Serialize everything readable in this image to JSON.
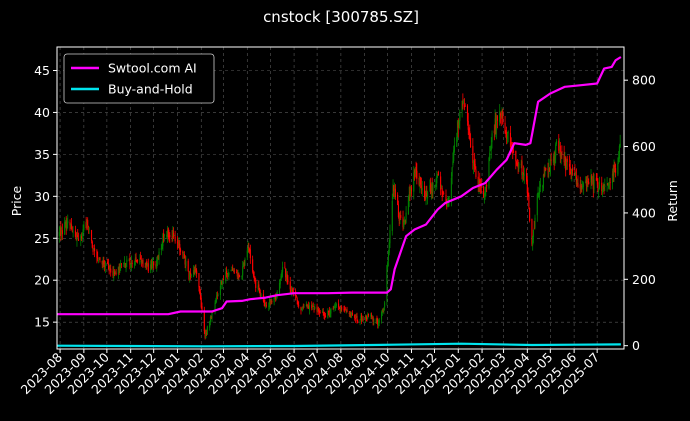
{
  "chart_data": {
    "type": "candlestick-line-overlay",
    "title": "cnstock [300785.SZ]",
    "ylabel": "Price",
    "ylabel_right": "Return",
    "ylim": [
      11.8,
      47.8
    ],
    "ylim_right": [
      -10,
      900
    ],
    "yticks": [
      15,
      20,
      25,
      30,
      35,
      40,
      45
    ],
    "yticks_right": [
      0,
      200,
      400,
      600,
      800
    ],
    "xlim": [
      "2023-07-28",
      "2025-08-05"
    ],
    "xticks": [
      "2023-08",
      "2023-09",
      "2023-10",
      "2023-11",
      "2023-12",
      "2024-01",
      "2024-02",
      "2024-03",
      "2024-04",
      "2024-05",
      "2024-06",
      "2024-07",
      "2024-08",
      "2024-09",
      "2024-10",
      "2024-11",
      "2024-12",
      "2025-01",
      "2025-02",
      "2025-03",
      "2025-04",
      "2025-05",
      "2025-06",
      "2025-07"
    ],
    "grid": true,
    "legend_placement": "top-left",
    "colors": {
      "background": "#000000",
      "up": "#008000",
      "down": "#ff0000",
      "strategy": "#ff00ff",
      "buy_hold": "#00e5ee",
      "text": "#ffffff"
    },
    "price_anchors": [
      [
        "2023-07-31",
        25.5
      ],
      [
        "2023-08-10",
        26.8
      ],
      [
        "2023-08-25",
        24.5
      ],
      [
        "2023-09-05",
        27.0
      ],
      [
        "2023-09-15",
        23.0
      ],
      [
        "2023-09-28",
        22.0
      ],
      [
        "2023-10-10",
        20.8
      ],
      [
        "2023-10-25",
        22.0
      ],
      [
        "2023-11-10",
        22.5
      ],
      [
        "2023-11-25",
        21.5
      ],
      [
        "2023-12-05",
        22.0
      ],
      [
        "2023-12-15",
        26.0
      ],
      [
        "2023-12-25",
        25.5
      ],
      [
        "2024-01-08",
        23.0
      ],
      [
        "2024-01-18",
        20.0
      ],
      [
        "2024-01-25",
        21.5
      ],
      [
        "2024-02-01",
        17.0
      ],
      [
        "2024-02-06",
        13.3
      ],
      [
        "2024-02-20",
        17.5
      ],
      [
        "2024-03-01",
        20.5
      ],
      [
        "2024-03-12",
        21.5
      ],
      [
        "2024-03-22",
        20.0
      ],
      [
        "2024-04-03",
        24.0
      ],
      [
        "2024-04-12",
        19.5
      ],
      [
        "2024-04-25",
        17.0
      ],
      [
        "2024-05-08",
        18.0
      ],
      [
        "2024-05-18",
        21.5
      ],
      [
        "2024-05-28",
        19.0
      ],
      [
        "2024-06-10",
        16.5
      ],
      [
        "2024-06-25",
        16.8
      ],
      [
        "2024-07-10",
        15.8
      ],
      [
        "2024-07-25",
        16.8
      ],
      [
        "2024-08-10",
        16.2
      ],
      [
        "2024-08-25",
        15.3
      ],
      [
        "2024-09-05",
        15.8
      ],
      [
        "2024-09-18",
        15.0
      ],
      [
        "2024-09-26",
        16.5
      ],
      [
        "2024-10-08",
        31.0
      ],
      [
        "2024-10-20",
        26.0
      ],
      [
        "2024-11-05",
        33.0
      ],
      [
        "2024-11-20",
        30.0
      ],
      [
        "2024-12-05",
        32.0
      ],
      [
        "2024-12-18",
        29.0
      ],
      [
        "2025-01-05",
        42.0
      ],
      [
        "2025-01-12",
        40.0
      ],
      [
        "2025-01-22",
        33.0
      ],
      [
        "2025-02-05",
        30.0
      ],
      [
        "2025-02-15",
        38.0
      ],
      [
        "2025-02-25",
        40.0
      ],
      [
        "2025-03-10",
        36.0
      ],
      [
        "2025-03-25",
        33.0
      ],
      [
        "2025-04-01",
        31.0
      ],
      [
        "2025-04-07",
        24.0
      ],
      [
        "2025-04-15",
        31.0
      ],
      [
        "2025-04-28",
        33.0
      ],
      [
        "2025-05-10",
        36.0
      ],
      [
        "2025-05-20",
        34.0
      ],
      [
        "2025-06-05",
        31.5
      ],
      [
        "2025-06-20",
        32.0
      ],
      [
        "2025-07-05",
        31.0
      ],
      [
        "2025-07-20",
        32.0
      ],
      [
        "2025-07-31",
        35.5
      ]
    ],
    "series": [
      {
        "name": "Swtool.com AI",
        "axis": "right",
        "points": [
          [
            "2023-07-28",
            95
          ],
          [
            "2023-12-20",
            95
          ],
          [
            "2024-01-05",
            103
          ],
          [
            "2024-02-15",
            103
          ],
          [
            "2024-02-28",
            113
          ],
          [
            "2024-03-05",
            133
          ],
          [
            "2024-03-25",
            135
          ],
          [
            "2024-04-05",
            140
          ],
          [
            "2024-04-25",
            145
          ],
          [
            "2024-05-10",
            152
          ],
          [
            "2024-06-01",
            158
          ],
          [
            "2024-07-15",
            158
          ],
          [
            "2024-08-15",
            160
          ],
          [
            "2024-09-30",
            160
          ],
          [
            "2024-10-05",
            170
          ],
          [
            "2024-10-10",
            230
          ],
          [
            "2024-10-25",
            330
          ],
          [
            "2024-11-05",
            350
          ],
          [
            "2024-11-20",
            365
          ],
          [
            "2024-12-05",
            410
          ],
          [
            "2024-12-15",
            430
          ],
          [
            "2025-01-05",
            450
          ],
          [
            "2025-01-20",
            475
          ],
          [
            "2025-02-05",
            490
          ],
          [
            "2025-02-20",
            530
          ],
          [
            "2025-03-05",
            560
          ],
          [
            "2025-03-15",
            610
          ],
          [
            "2025-03-30",
            605
          ],
          [
            "2025-04-05",
            610
          ],
          [
            "2025-04-15",
            735
          ],
          [
            "2025-05-01",
            760
          ],
          [
            "2025-05-20",
            780
          ],
          [
            "2025-06-10",
            785
          ],
          [
            "2025-07-01",
            790
          ],
          [
            "2025-07-10",
            835
          ],
          [
            "2025-07-20",
            840
          ],
          [
            "2025-07-25",
            860
          ],
          [
            "2025-08-01",
            870
          ]
        ]
      },
      {
        "name": "Buy-and-Hold",
        "axis": "right",
        "points": [
          [
            "2023-07-28",
            0
          ],
          [
            "2024-02-06",
            -2
          ],
          [
            "2024-06-01",
            -1
          ],
          [
            "2024-10-08",
            3
          ],
          [
            "2025-01-05",
            6
          ],
          [
            "2025-04-07",
            2
          ],
          [
            "2025-06-01",
            3
          ],
          [
            "2025-08-01",
            4
          ]
        ]
      }
    ]
  }
}
